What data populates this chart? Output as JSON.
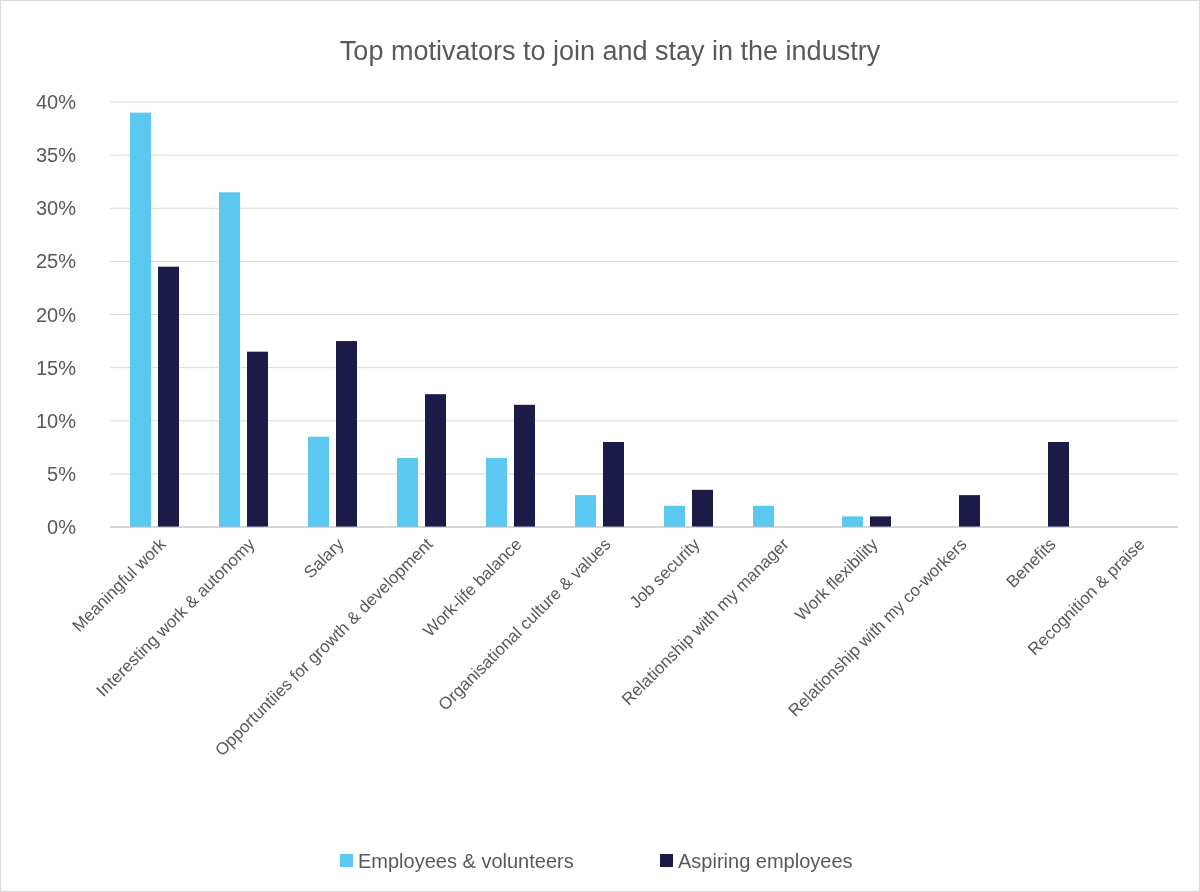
{
  "chart_data": {
    "type": "bar",
    "title": "Top motivators to join and stay in the industry",
    "categories": [
      "Meaningful work",
      "Interesting work & autonomy",
      "Salary",
      "Opportuntiies for growth & development",
      "Work-life balance",
      "Organisational culture & values",
      "Job security",
      "Relationship with my manager",
      "Work flexibility",
      "Relationship with my co-workers",
      "Benefits",
      "Recognition & praise"
    ],
    "series": [
      {
        "name": "Employees & volunteers",
        "color": "#5bc8f2",
        "values": [
          39,
          31.5,
          8.5,
          6.5,
          6.5,
          3,
          2,
          2,
          1,
          0,
          0,
          0
        ]
      },
      {
        "name": "Aspiring employees",
        "color": "#1c1a47",
        "values": [
          24.5,
          16.5,
          17.5,
          12.5,
          11.5,
          8,
          3.5,
          0,
          1,
          3,
          8,
          0
        ]
      }
    ],
    "ylim": [
      0,
      40
    ],
    "yticks": [
      {
        "value": 0,
        "label": "0%"
      },
      {
        "value": 5,
        "label": "5%"
      },
      {
        "value": 10,
        "label": "10%"
      },
      {
        "value": 15,
        "label": "15%"
      },
      {
        "value": 20,
        "label": "20%"
      },
      {
        "value": 25,
        "label": "25%"
      },
      {
        "value": 30,
        "label": "30%"
      },
      {
        "value": 35,
        "label": "35%"
      },
      {
        "value": 40,
        "label": "40%"
      }
    ],
    "grid": "y",
    "legend": "bottom"
  }
}
